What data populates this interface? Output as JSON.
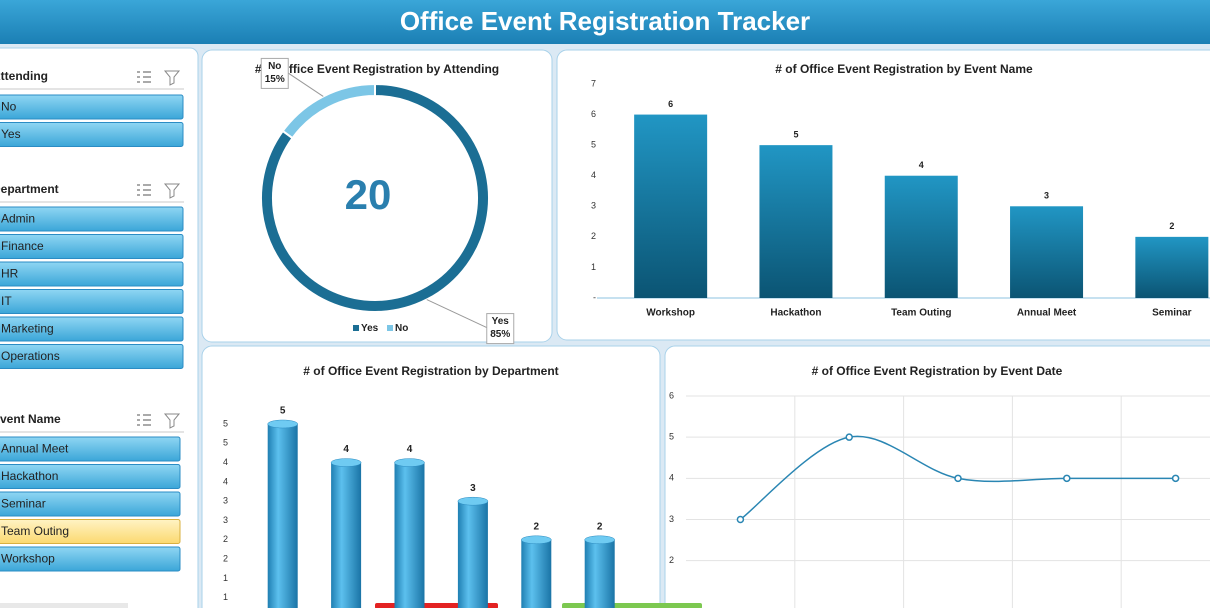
{
  "header": {
    "title": "Office Event Registration Tracker"
  },
  "slicers": [
    {
      "title": "Attending",
      "items": [
        {
          "label": "No",
          "selected": false
        },
        {
          "label": "Yes",
          "selected": false
        }
      ]
    },
    {
      "title": "Department",
      "items": [
        {
          "label": "Admin",
          "selected": false
        },
        {
          "label": "Finance",
          "selected": false
        },
        {
          "label": "HR",
          "selected": false
        },
        {
          "label": "IT",
          "selected": false
        },
        {
          "label": "Marketing",
          "selected": false
        },
        {
          "label": "Operations",
          "selected": false
        }
      ]
    },
    {
      "title": "Event Name",
      "items": [
        {
          "label": "Annual Meet",
          "selected": false
        },
        {
          "label": "Hackathon",
          "selected": false
        },
        {
          "label": "Seminar",
          "selected": false
        },
        {
          "label": "Team Outing",
          "selected": true
        },
        {
          "label": "Workshop",
          "selected": false
        }
      ]
    }
  ],
  "chart_data": [
    {
      "type": "donut",
      "title": "# of Office Event Registration by Attending",
      "center_label": 20,
      "categories": [
        "Yes",
        "No"
      ],
      "values": [
        85,
        15
      ],
      "value_labels": [
        "85%",
        "15%"
      ],
      "colors": [
        "#1b6e94",
        "#7cc6e6"
      ],
      "legend": "bottom"
    },
    {
      "type": "bar",
      "title": "# of Office Event Registration by Event Name",
      "categories": [
        "Workshop",
        "Hackathon",
        "Team Outing",
        "Annual Meet",
        "Seminar"
      ],
      "values": [
        6,
        5,
        4,
        3,
        2
      ],
      "color": "#1a7ca6",
      "ylim": [
        0,
        7
      ],
      "yticks": [
        {
          "value": 0,
          "label": "-"
        },
        1,
        2,
        3,
        4,
        5,
        6,
        7
      ],
      "grid": false
    },
    {
      "type": "bar3d",
      "title": "# of Office Event Registration by Department",
      "categories": [
        null,
        null,
        null,
        null,
        null,
        null
      ],
      "values": [
        5,
        4,
        4,
        3,
        2,
        2
      ],
      "color": "#2e9fd6",
      "ylim": [
        0,
        5
      ],
      "yticks": [
        {
          "value": 0.5,
          "label": "1"
        },
        1,
        {
          "value": 1.5,
          "label": "2"
        },
        2,
        {
          "value": 2.5,
          "label": "3"
        },
        3,
        {
          "value": 3.5,
          "label": "4"
        },
        4,
        {
          "value": 4.5,
          "label": "5"
        },
        5
      ],
      "grid": false
    },
    {
      "type": "line",
      "title": "# of Office Event Registration by Event Date",
      "categories": [
        null,
        null,
        null,
        null,
        null
      ],
      "values": [
        3,
        5,
        4,
        4,
        4
      ],
      "color": "#2a86b3",
      "smooth": true,
      "ylim": [
        0,
        6
      ],
      "yticks": [
        2,
        3,
        4,
        5,
        6
      ],
      "grid": true
    }
  ]
}
